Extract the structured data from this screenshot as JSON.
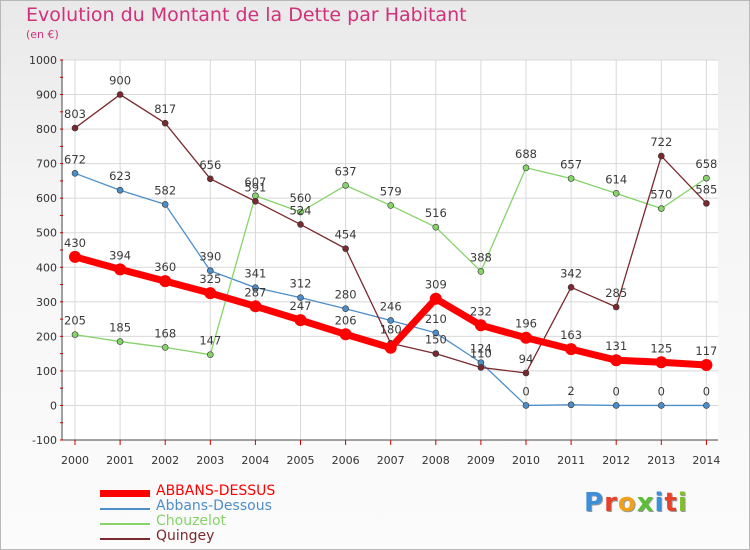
{
  "header": {
    "title": "Evolution du Montant de la Dette par Habitant",
    "subtitle": "(en €)"
  },
  "logo": {
    "text": "Proxiti"
  },
  "chart_data": {
    "type": "line",
    "title": "Evolution du Montant de la Dette par Habitant",
    "subtitle": "(en €)",
    "xlabel": "",
    "ylabel": "",
    "x": [
      "2000",
      "2001",
      "2002",
      "2003",
      "2004",
      "2005",
      "2006",
      "2007",
      "2008",
      "2009",
      "2010",
      "2011",
      "2012",
      "2013",
      "2014"
    ],
    "ylim": [
      -100,
      1000
    ],
    "yticks": [
      -100,
      0,
      100,
      200,
      300,
      400,
      500,
      600,
      700,
      800,
      900,
      1000
    ],
    "grid": true,
    "legend_position": "bottom-left",
    "series": [
      {
        "name": "ABBANS-DESSUS",
        "color": "#ff0000",
        "values": [
          430,
          394,
          360,
          325,
          287,
          247,
          206,
          167,
          309,
          232,
          196,
          163,
          131,
          125,
          117
        ],
        "labels": [
          "430",
          "394",
          "360",
          "325",
          "287",
          "247",
          "206",
          "",
          "309",
          "232",
          "196",
          "163",
          "131",
          "125",
          "117"
        ]
      },
      {
        "name": "Abbans-Dessous",
        "color": "#4d8ec9",
        "values": [
          672,
          623,
          582,
          390,
          341,
          312,
          280,
          246,
          210,
          124,
          0,
          2,
          0,
          0,
          0
        ],
        "labels": [
          "672",
          "623",
          "582",
          "390",
          "341",
          "312",
          "280",
          "246",
          "210",
          "124",
          "0",
          "2",
          "0",
          "0",
          "0"
        ]
      },
      {
        "name": "Chouzelot",
        "color": "#86d36a",
        "values": [
          205,
          185,
          168,
          147,
          607,
          560,
          637,
          579,
          516,
          388,
          688,
          657,
          614,
          570,
          658
        ],
        "labels": [
          "205",
          "185",
          "168",
          "147",
          "607",
          "560",
          "637",
          "579",
          "516",
          "388",
          "688",
          "657",
          "614",
          "570",
          "658"
        ]
      },
      {
        "name": "Quingey",
        "color": "#7a2a2e",
        "values": [
          803,
          900,
          817,
          656,
          591,
          524,
          454,
          180,
          150,
          110,
          94,
          342,
          285,
          722,
          585
        ],
        "labels": [
          "803",
          "900",
          "817",
          "656",
          "591",
          "524",
          "454",
          "180",
          "150",
          "110",
          "94",
          "342",
          "285",
          "722",
          "585"
        ]
      }
    ]
  }
}
